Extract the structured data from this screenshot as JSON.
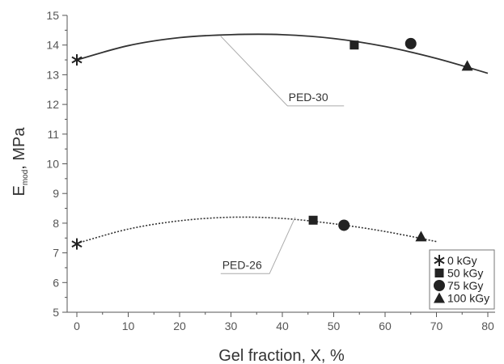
{
  "chart_data": {
    "type": "scatter",
    "xlabel": "Gel fraction, X, %",
    "ylabel_main": "E",
    "ylabel_sub": "mod",
    "ylabel_rest": ", MPa",
    "xlim": [
      0,
      80
    ],
    "ylim": [
      5,
      15
    ],
    "xticks": [
      0,
      10,
      20,
      30,
      40,
      50,
      60,
      70,
      80
    ],
    "yticks": [
      5,
      6,
      7,
      8,
      9,
      10,
      11,
      12,
      13,
      14,
      15
    ],
    "grid": false,
    "legend_position": "bottom-right",
    "legend": [
      {
        "label": "0 kGy",
        "marker": "star"
      },
      {
        "label": "50 kGy",
        "marker": "square"
      },
      {
        "label": "75 kGy",
        "marker": "circle"
      },
      {
        "label": "100 kGy",
        "marker": "triangle"
      }
    ],
    "series": [
      {
        "name": "PED-30",
        "line_style": "solid",
        "points": [
          {
            "x": 0,
            "y": 13.5,
            "marker": "star"
          },
          {
            "x": 54,
            "y": 14.0,
            "marker": "square"
          },
          {
            "x": 65,
            "y": 14.05,
            "marker": "circle"
          },
          {
            "x": 76,
            "y": 13.3,
            "marker": "triangle"
          }
        ],
        "fit": {
          "x": [
            0,
            10,
            20,
            30,
            40,
            50,
            60,
            70,
            80
          ],
          "y": [
            13.5,
            13.98,
            14.25,
            14.35,
            14.35,
            14.22,
            13.95,
            13.55,
            13.05
          ]
        }
      },
      {
        "name": "PED-26",
        "line_style": "dotted",
        "points": [
          {
            "x": 0,
            "y": 7.3,
            "marker": "star"
          },
          {
            "x": 46,
            "y": 8.1,
            "marker": "square"
          },
          {
            "x": 52,
            "y": 7.93,
            "marker": "circle"
          },
          {
            "x": 67,
            "y": 7.55,
            "marker": "triangle"
          }
        ],
        "fit": {
          "x": [
            0,
            10,
            20,
            30,
            40,
            50,
            60,
            70
          ],
          "y": [
            7.32,
            7.8,
            8.08,
            8.2,
            8.16,
            7.98,
            7.72,
            7.38
          ]
        }
      }
    ],
    "annotations": [
      {
        "text": "PED-30",
        "series": "PED-30"
      },
      {
        "text": "PED-26",
        "series": "PED-26"
      }
    ]
  }
}
